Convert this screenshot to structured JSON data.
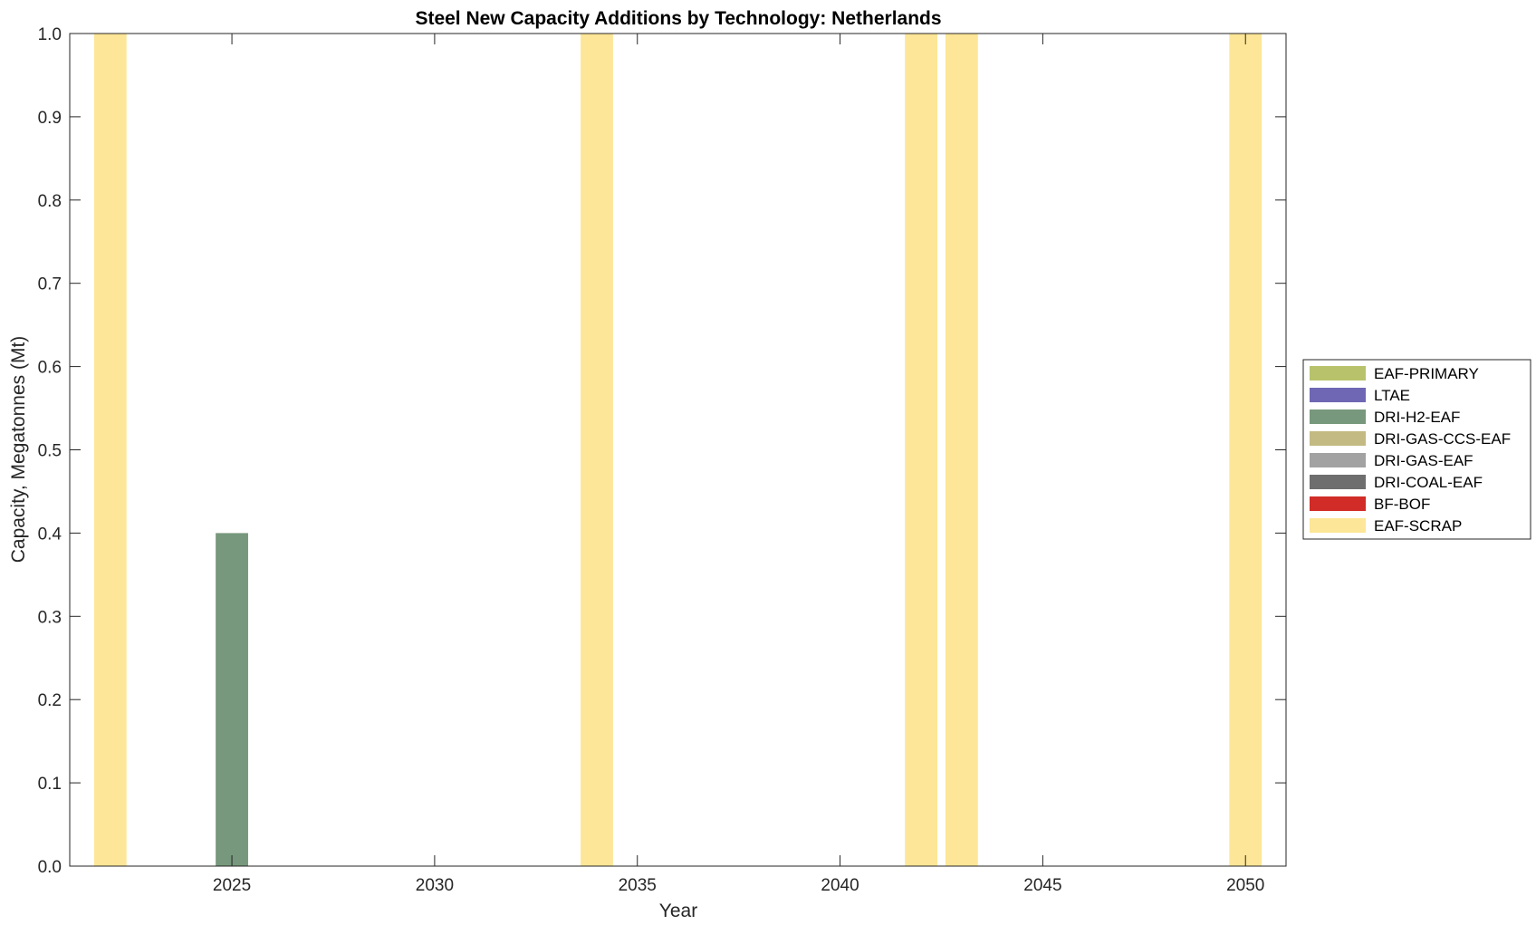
{
  "chart_data": {
    "type": "bar",
    "stacked": true,
    "title": "Steel New Capacity Additions by Technology: Netherlands",
    "xlabel": "Year",
    "ylabel": "Capacity, Megatonnes (Mt)",
    "xlim": [
      2021,
      2051
    ],
    "ylim": [
      0,
      1
    ],
    "x_ticks": [
      2025,
      2030,
      2035,
      2040,
      2045,
      2050
    ],
    "y_ticks": [
      "0.0",
      "0.1",
      "0.2",
      "0.3",
      "0.4",
      "0.5",
      "0.6",
      "0.7",
      "0.8",
      "0.9",
      "1.0"
    ],
    "grid": false,
    "legend_position": "outside-right",
    "series": [
      {
        "name": "EAF-PRIMARY",
        "color": "#b8c26b",
        "points": []
      },
      {
        "name": "LTAE",
        "color": "#6f67b4",
        "points": []
      },
      {
        "name": "DRI-H2-EAF",
        "color": "#77987c",
        "points": [
          {
            "x": 2025,
            "y": 0.4
          }
        ]
      },
      {
        "name": "DRI-GAS-CCS-EAF",
        "color": "#c3ba83",
        "points": []
      },
      {
        "name": "DRI-GAS-EAF",
        "color": "#a2a2a2",
        "points": []
      },
      {
        "name": "DRI-COAL-EAF",
        "color": "#6e6e6e",
        "points": []
      },
      {
        "name": "BF-BOF",
        "color": "#d12c27",
        "points": []
      },
      {
        "name": "EAF-SCRAP",
        "color": "#fde697",
        "points": [
          {
            "x": 2022,
            "y": 1.0
          },
          {
            "x": 2034,
            "y": 1.0
          },
          {
            "x": 2042,
            "y": 1.0
          },
          {
            "x": 2043,
            "y": 1.0
          },
          {
            "x": 2050,
            "y": 1.0
          }
        ]
      }
    ]
  }
}
